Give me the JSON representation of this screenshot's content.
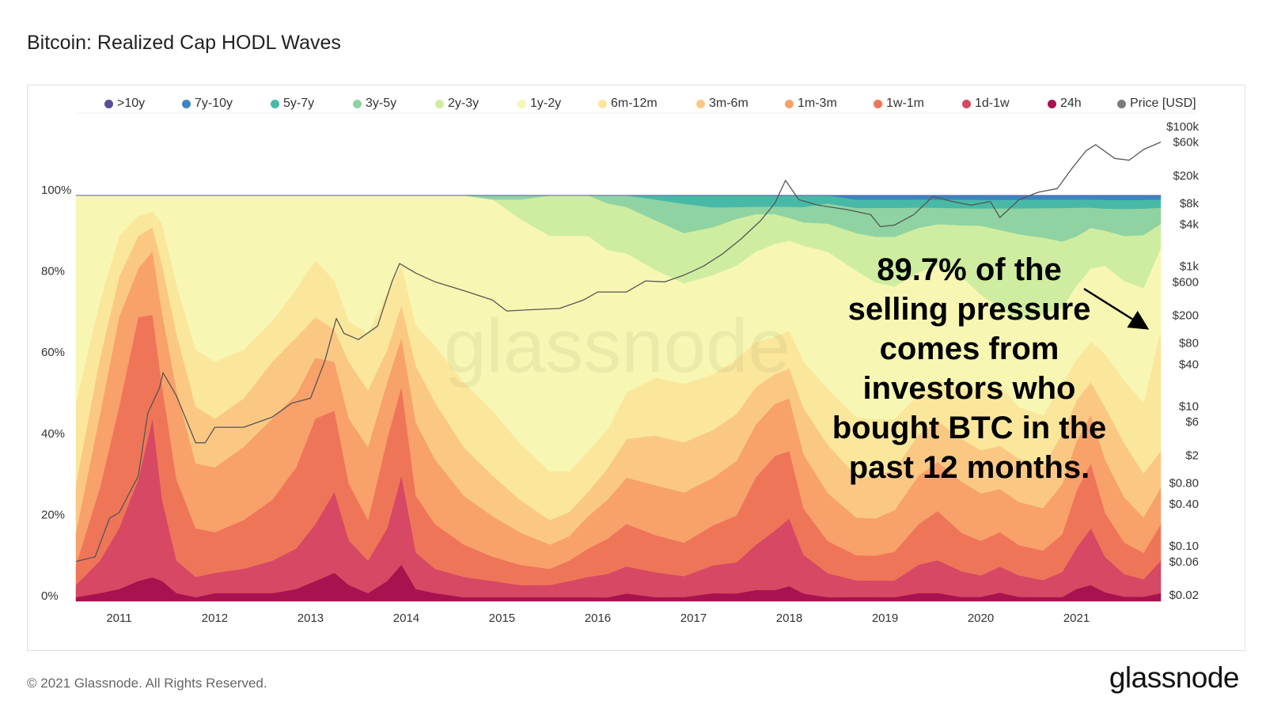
{
  "title": "Bitcoin: Realized Cap HODL Waves",
  "footer": "© 2021 Glassnode. All Rights Reserved.",
  "brand": "glassnode",
  "watermark": "glassnode",
  "annotation": "89.7% of the\nselling pressure\ncomes from\ninvestors who\nbought BTC in the\npast 12 months.",
  "legend": [
    {
      "label": ">10y",
      "color": "#5b4b9a"
    },
    {
      "label": "7y-10y",
      "color": "#3a86c0"
    },
    {
      "label": "5y-7y",
      "color": "#48b9a6"
    },
    {
      "label": "3y-5y",
      "color": "#8fd3a3"
    },
    {
      "label": "2y-3y",
      "color": "#cfeda0"
    },
    {
      "label": "1y-2y",
      "color": "#f7f7b3"
    },
    {
      "label": "6m-12m",
      "color": "#fbe79c"
    },
    {
      "label": "3m-6m",
      "color": "#fbc884"
    },
    {
      "label": "1m-3m",
      "color": "#f8a16a"
    },
    {
      "label": "1w-1m",
      "color": "#ef7559"
    },
    {
      "label": "1d-1w",
      "color": "#d64863"
    },
    {
      "label": "24h",
      "color": "#a8124f"
    },
    {
      "label": "Price [USD]",
      "color": "#7a7a7a"
    }
  ],
  "chart_data": {
    "type": "area",
    "stacking": "percent",
    "title": "Bitcoin: Realized Cap HODL Waves",
    "y_left_ticks": [
      "0%",
      "20%",
      "40%",
      "60%",
      "80%",
      "100%"
    ],
    "y_left_range": [
      0,
      100
    ],
    "y_right_ticks": [
      "$0.02",
      "$0.06",
      "$0.10",
      "$0.40",
      "$0.80",
      "$2",
      "$6",
      "$10",
      "$40",
      "$80",
      "$200",
      "$600",
      "$1k",
      "$4k",
      "$8k",
      "$20k",
      "$60k",
      "$100k"
    ],
    "y_right_scale": "log",
    "y_right_range": [
      0.02,
      100000
    ],
    "x_ticks": [
      "2011",
      "2012",
      "2013",
      "2014",
      "2015",
      "2016",
      "2017",
      "2018",
      "2019",
      "2020",
      "2021"
    ],
    "x_range": [
      2010.55,
      2021.88
    ],
    "x": [
      2010.55,
      2010.8,
      2011.0,
      2011.2,
      2011.35,
      2011.45,
      2011.6,
      2011.8,
      2012.0,
      2012.3,
      2012.6,
      2012.85,
      2013.05,
      2013.25,
      2013.4,
      2013.6,
      2013.8,
      2013.95,
      2014.1,
      2014.3,
      2014.6,
      2014.9,
      2015.2,
      2015.5,
      2015.7,
      2015.9,
      2016.1,
      2016.3,
      2016.6,
      2016.9,
      2017.2,
      2017.45,
      2017.65,
      2017.85,
      2018.0,
      2018.15,
      2018.4,
      2018.7,
      2018.9,
      2019.1,
      2019.35,
      2019.55,
      2019.8,
      2020.0,
      2020.2,
      2020.4,
      2020.65,
      2020.85,
      2021.0,
      2021.15,
      2021.3,
      2021.5,
      2021.7,
      2021.88
    ],
    "series": [
      {
        "name": "24h",
        "values": [
          1,
          2,
          3,
          5,
          6,
          5,
          2,
          1,
          2,
          2,
          2,
          3,
          5,
          7,
          4,
          2,
          5,
          9,
          3,
          2,
          1,
          1,
          1,
          1,
          1,
          1,
          1,
          2,
          1,
          1,
          2,
          2,
          3,
          3,
          4,
          2,
          1,
          1,
          1,
          1,
          2,
          2,
          1,
          1,
          2,
          1,
          1,
          1,
          3,
          4,
          2,
          1,
          1,
          2
        ]
      },
      {
        "name": "1d-1w",
        "values": [
          3,
          8,
          15,
          25,
          40,
          20,
          8,
          5,
          5,
          6,
          8,
          10,
          14,
          20,
          11,
          8,
          13,
          22,
          9,
          6,
          5,
          4,
          3,
          3,
          4,
          5,
          6,
          7,
          6,
          5,
          7,
          8,
          12,
          16,
          18,
          10,
          6,
          4,
          4,
          4,
          7,
          8,
          6,
          5,
          6,
          5,
          4,
          6,
          10,
          14,
          8,
          5,
          4,
          8
        ]
      },
      {
        "name": "1w-1m",
        "values": [
          5,
          18,
          30,
          40,
          26,
          28,
          20,
          12,
          10,
          12,
          15,
          20,
          26,
          20,
          14,
          10,
          22,
          22,
          14,
          11,
          8,
          6,
          5,
          4,
          5,
          7,
          9,
          11,
          9,
          8,
          10,
          12,
          18,
          20,
          18,
          12,
          8,
          6,
          6,
          7,
          10,
          12,
          9,
          8,
          8,
          7,
          7,
          9,
          14,
          16,
          10,
          7,
          6,
          9
        ]
      },
      {
        "name": "1m-3m",
        "values": [
          8,
          18,
          22,
          12,
          16,
          18,
          22,
          16,
          16,
          18,
          20,
          18,
          15,
          12,
          16,
          18,
          14,
          12,
          18,
          16,
          12,
          10,
          8,
          6,
          6,
          8,
          10,
          12,
          12,
          12,
          12,
          14,
          14,
          14,
          14,
          14,
          12,
          9,
          9,
          10,
          12,
          12,
          12,
          11,
          10,
          10,
          10,
          12,
          12,
          12,
          12,
          10,
          8,
          9
        ]
      },
      {
        "name": "3m-6m",
        "values": [
          12,
          14,
          10,
          8,
          6,
          12,
          14,
          14,
          12,
          12,
          14,
          14,
          10,
          8,
          14,
          14,
          8,
          8,
          14,
          14,
          12,
          10,
          8,
          6,
          6,
          6,
          8,
          10,
          12,
          12,
          12,
          12,
          10,
          8,
          8,
          12,
          12,
          10,
          10,
          10,
          10,
          10,
          10,
          10,
          10,
          10,
          10,
          12,
          10,
          8,
          12,
          12,
          10,
          9
        ]
      },
      {
        "name": "6m-12m",
        "values": [
          20,
          14,
          10,
          5,
          4,
          10,
          12,
          14,
          14,
          12,
          10,
          12,
          14,
          12,
          10,
          14,
          14,
          10,
          10,
          14,
          16,
          16,
          14,
          12,
          10,
          10,
          10,
          12,
          14,
          14,
          14,
          14,
          12,
          10,
          10,
          12,
          14,
          14,
          14,
          12,
          10,
          10,
          12,
          14,
          14,
          12,
          12,
          12,
          10,
          10,
          12,
          14,
          16,
          30
        ]
      },
      {
        "name": "1y-2y",
        "values": [
          51,
          26,
          10,
          5,
          4,
          7,
          22,
          38,
          41,
          38,
          31,
          23,
          16,
          21,
          31,
          34,
          24,
          17,
          32,
          37,
          46,
          52,
          56,
          58,
          58,
          53,
          46,
          36,
          26,
          24,
          25,
          24,
          24,
          25,
          24,
          30,
          34,
          35,
          33,
          32,
          30,
          28,
          26,
          22,
          18,
          20,
          24,
          18,
          18,
          18,
          20,
          22,
          26,
          20
        ]
      },
      {
        "name": "2y-3y",
        "values": [
          0,
          0,
          0,
          0,
          0,
          0,
          0,
          0,
          0,
          0,
          0,
          0,
          0,
          0,
          0,
          0,
          0,
          0,
          0,
          0,
          0,
          0,
          5,
          10,
          10,
          10,
          12,
          12,
          12,
          12,
          12,
          12,
          10,
          8,
          6,
          6,
          7,
          9,
          11,
          12,
          11,
          10,
          12,
          16,
          18,
          20,
          18,
          16,
          12,
          10,
          8,
          10,
          12,
          6
        ]
      },
      {
        "name": "3y-5y",
        "values": [
          0,
          0,
          0,
          0,
          0,
          0,
          0,
          0,
          0,
          0,
          0,
          0,
          0,
          0,
          0,
          0,
          0,
          0,
          0,
          0,
          0,
          1,
          1,
          0,
          0,
          0,
          2,
          3,
          5,
          7,
          5,
          3,
          2,
          2,
          3,
          4,
          5,
          6,
          7,
          7,
          5,
          4,
          4,
          4,
          5,
          6,
          7,
          8,
          7,
          5,
          5,
          6,
          6,
          4
        ]
      },
      {
        "name": "5y-7y",
        "values": [
          0,
          0,
          0,
          0,
          0,
          0,
          0,
          0,
          0,
          0,
          0,
          0,
          0,
          0,
          0,
          0,
          0,
          0,
          0,
          0,
          0,
          0,
          0,
          0,
          0,
          0,
          0,
          0,
          1,
          2,
          3,
          3,
          3,
          3,
          3,
          3,
          2,
          2,
          2,
          2,
          2,
          2,
          2,
          2,
          2,
          2,
          2,
          2,
          2,
          2,
          2,
          2,
          2,
          2
        ]
      },
      {
        "name": "7y-10y",
        "values": [
          0,
          0,
          0,
          0,
          0,
          0,
          0,
          0,
          0,
          0,
          0,
          0,
          0,
          0,
          0,
          0,
          0,
          0,
          0,
          0,
          0,
          0,
          0,
          0,
          0,
          0,
          0,
          0,
          0,
          0,
          0,
          0,
          0,
          0,
          0,
          0,
          0,
          1,
          1,
          1,
          1,
          1,
          1,
          1,
          1,
          1,
          1,
          1,
          1,
          1,
          1,
          1,
          1,
          1
        ]
      },
      {
        "name": ">10y",
        "values": [
          0,
          0,
          0,
          0,
          0,
          0,
          0,
          0,
          0,
          0,
          0,
          0,
          0,
          0,
          0,
          0,
          0,
          0,
          0,
          0,
          0,
          0,
          0,
          0,
          0,
          0,
          0,
          0,
          0,
          0,
          0,
          0,
          0,
          0,
          0,
          0,
          0,
          0,
          0,
          0,
          0,
          0,
          0,
          0,
          0,
          0,
          0,
          0,
          0,
          0,
          0,
          0,
          0,
          0
        ]
      }
    ],
    "price": {
      "name": "Price [USD]",
      "x": [
        2010.55,
        2010.75,
        2010.9,
        2011.0,
        2011.2,
        2011.3,
        2011.42,
        2011.46,
        2011.6,
        2011.8,
        2011.9,
        2012.0,
        2012.3,
        2012.6,
        2012.8,
        2013.0,
        2013.15,
        2013.27,
        2013.35,
        2013.5,
        2013.7,
        2013.85,
        2013.93,
        2014.1,
        2014.3,
        2014.6,
        2014.9,
        2015.05,
        2015.3,
        2015.6,
        2015.85,
        2016.0,
        2016.3,
        2016.5,
        2016.7,
        2016.9,
        2017.1,
        2017.3,
        2017.5,
        2017.7,
        2017.85,
        2017.96,
        2018.1,
        2018.3,
        2018.6,
        2018.85,
        2018.95,
        2019.1,
        2019.3,
        2019.5,
        2019.7,
        2019.9,
        2020.1,
        2020.2,
        2020.4,
        2020.6,
        2020.8,
        2020.95,
        2021.1,
        2021.2,
        2021.4,
        2021.55,
        2021.7,
        2021.88
      ],
      "values": [
        0.06,
        0.07,
        0.25,
        0.3,
        1.0,
        8,
        18,
        30,
        14,
        3,
        3,
        5,
        5,
        7,
        11,
        13,
        45,
        180,
        110,
        90,
        140,
        600,
        1100,
        800,
        600,
        450,
        330,
        230,
        240,
        250,
        330,
        430,
        430,
        620,
        600,
        750,
        1000,
        1500,
        2500,
        4500,
        8000,
        17000,
        9000,
        7500,
        6500,
        5500,
        3700,
        3900,
        5500,
        10000,
        8500,
        7500,
        8500,
        5000,
        9000,
        11500,
        13000,
        25000,
        45000,
        55000,
        35000,
        33000,
        47000,
        60000
      ]
    }
  }
}
